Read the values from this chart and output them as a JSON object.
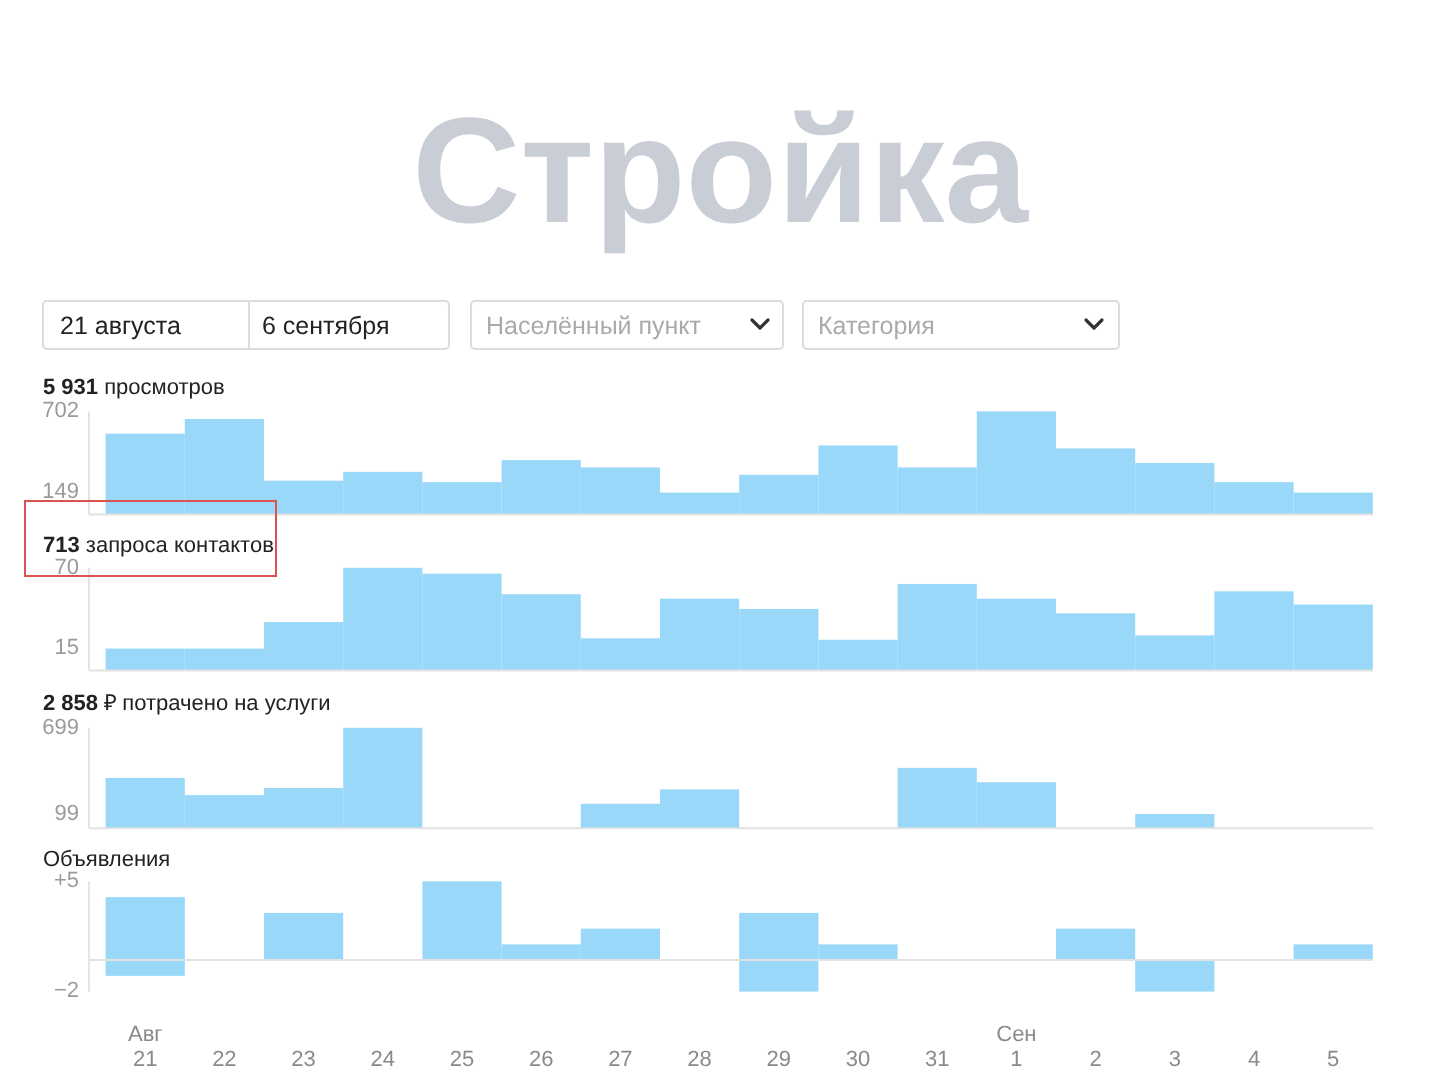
{
  "chart_data": [
    {
      "type": "other",
      "title": "Стройка",
      "annotations": [
        "21 августа",
        "6 сентября",
        "Населённый пункт",
        "Категория"
      ]
    },
    {
      "type": "bar",
      "title": "5 931 просмотров",
      "categories": [
        null,
        null,
        null,
        null,
        null,
        null,
        null,
        null,
        null,
        null,
        null,
        null,
        null,
        null,
        null,
        null
      ],
      "values": [
        550,
        650,
        230,
        290,
        220,
        370,
        320,
        149,
        270,
        470,
        320,
        702,
        450,
        350,
        220,
        149
      ],
      "color": "#99d8f9",
      "ylim": [
        0,
        702
      ],
      "yticks": [
        149,
        702
      ],
      "tick_labels": "y"
    },
    {
      "type": "bar",
      "title": "713 запроса контактов",
      "categories": [
        null,
        null,
        null,
        null,
        null,
        null,
        null,
        null,
        null,
        null,
        null,
        null,
        null,
        null,
        null,
        null
      ],
      "values": [
        15,
        15,
        33,
        70,
        66,
        52,
        22,
        49,
        42,
        21,
        59,
        49,
        39,
        24,
        54,
        45
      ],
      "color": "#99d8f9",
      "ylim": [
        0,
        70
      ],
      "yticks": [
        15,
        70
      ],
      "tick_labels": "y"
    },
    {
      "type": "bar",
      "title": "2 858 ₽ потрачено на услуги",
      "categories": [
        null,
        null,
        null,
        null,
        null,
        null,
        null,
        null,
        null,
        null,
        null,
        null,
        null,
        null,
        null,
        null
      ],
      "values": [
        350,
        230,
        280,
        699,
        null,
        null,
        170,
        270,
        null,
        null,
        420,
        320,
        null,
        99,
        null,
        null
      ],
      "color": "#99d8f9",
      "ylim": [
        0,
        699
      ],
      "yticks": [
        99,
        699
      ],
      "tick_labels": "y"
    },
    {
      "type": "bar",
      "title": "Объявления",
      "categories": [
        "Авг\n21",
        "22",
        "23",
        "24",
        "25",
        "26",
        "27",
        "28",
        "29",
        "30",
        "31",
        "Сен\n1",
        "2",
        "3",
        "4",
        "5"
      ],
      "stacked": true,
      "series": [
        {
          "color": "#99d8f9",
          "values": [
            4,
            null,
            3,
            null,
            5,
            1,
            2,
            null,
            3,
            1,
            null,
            null,
            2,
            null,
            null,
            1
          ]
        },
        {
          "color": "#99d8f9",
          "values": [
            -1,
            null,
            null,
            null,
            null,
            null,
            null,
            null,
            -2,
            null,
            null,
            null,
            null,
            -2,
            null,
            null
          ]
        }
      ],
      "ylim": [
        -2,
        5
      ],
      "yticks": [
        {
          "value": -2,
          "label": "−2"
        },
        {
          "value": 5,
          "label": "+5"
        }
      ]
    }
  ]
}
